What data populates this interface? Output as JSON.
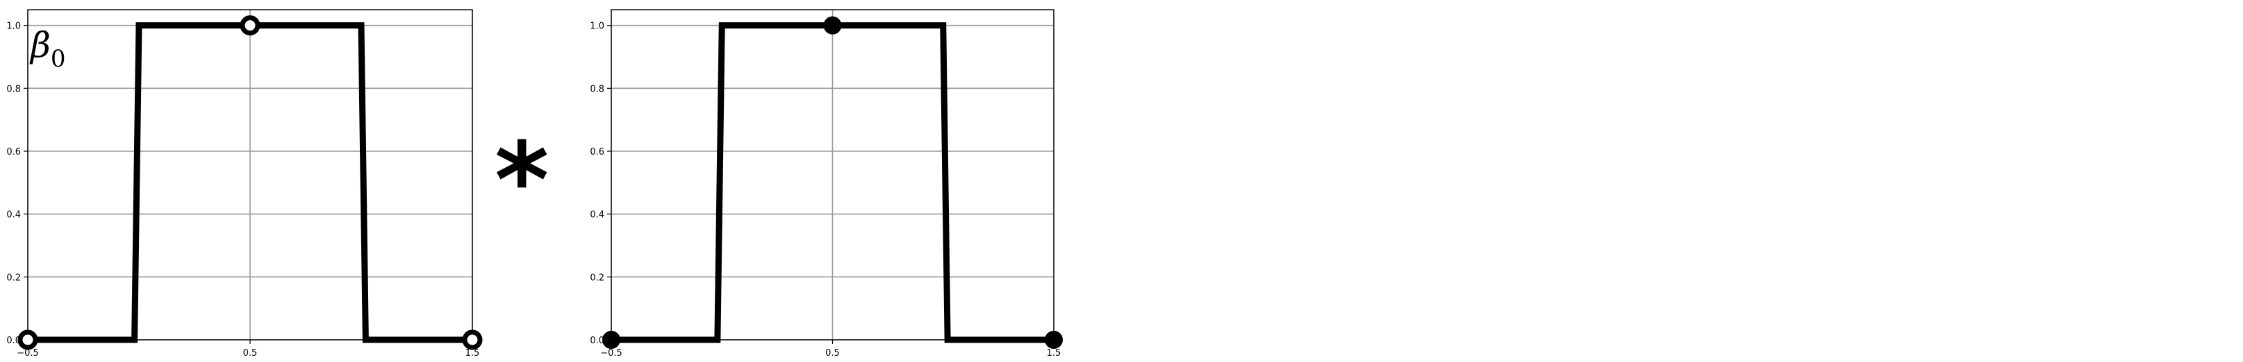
{
  "operator_symbol": "*",
  "chart_data": [
    {
      "type": "line",
      "title": "",
      "annotation": {
        "symbol": "β",
        "subscript": "0"
      },
      "xlim": [
        -0.5,
        1.5
      ],
      "ylim": [
        0.0,
        1.05
      ],
      "xticks": [
        -0.5,
        0.5,
        1.5
      ],
      "xtick_labels": [
        "−0.5",
        "0.5",
        "1.5"
      ],
      "yticks": [
        0.0,
        0.2,
        0.4,
        0.6,
        0.8,
        1.0
      ],
      "ytick_labels": [
        "0.0",
        "0.2",
        "0.4",
        "0.6",
        "0.8",
        "1.0"
      ],
      "grid": true,
      "series": [
        {
          "x": [
            -0.5,
            -0.02,
            0.0,
            1.0,
            1.02,
            1.5
          ],
          "y": [
            0.0,
            0.0,
            1.0,
            1.0,
            0.0,
            0.0
          ],
          "color": "#000000"
        }
      ],
      "markers": [
        {
          "x": -0.5,
          "y": 0.0,
          "style": "hollow"
        },
        {
          "x": 0.5,
          "y": 1.0,
          "style": "hollow"
        },
        {
          "x": 1.5,
          "y": 0.0,
          "style": "hollow"
        }
      ]
    },
    {
      "type": "line",
      "title": "",
      "xlim": [
        -0.5,
        1.5
      ],
      "ylim": [
        0.0,
        1.05
      ],
      "xticks": [
        -0.5,
        0.5,
        1.5
      ],
      "xtick_labels": [
        "−0.5",
        "0.5",
        "1.5"
      ],
      "yticks": [
        0.0,
        0.2,
        0.4,
        0.6,
        0.8,
        1.0
      ],
      "ytick_labels": [
        "0.0",
        "0.2",
        "0.4",
        "0.6",
        "0.8",
        "1.0"
      ],
      "grid": true,
      "series": [
        {
          "x": [
            -0.5,
            -0.02,
            0.0,
            1.0,
            1.02,
            1.5
          ],
          "y": [
            0.0,
            0.0,
            1.0,
            1.0,
            0.0,
            0.0
          ],
          "color": "#000000"
        }
      ],
      "markers": [
        {
          "x": -0.5,
          "y": 0.0,
          "style": "filled"
        },
        {
          "x": 0.5,
          "y": 1.0,
          "style": "filled"
        },
        {
          "x": 1.5,
          "y": 0.0,
          "style": "filled"
        }
      ]
    }
  ]
}
